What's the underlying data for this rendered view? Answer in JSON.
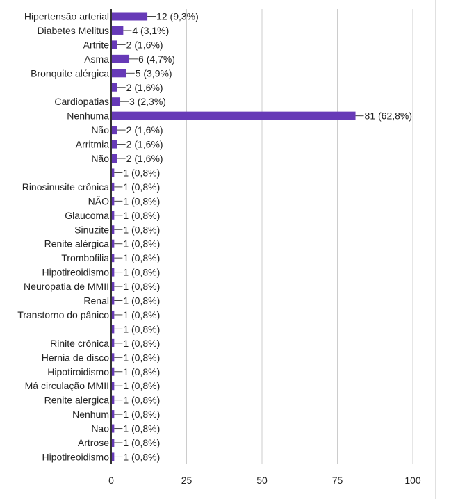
{
  "chart_data": {
    "type": "bar",
    "orientation": "horizontal",
    "categories": [
      "Hipertensão arterial",
      "Diabetes Melitus",
      "Artrite",
      "Asma",
      "Bronquite alérgica",
      "",
      "Cardiopatias",
      "Nenhuma",
      "Não",
      "Arritmia",
      "Não",
      "",
      "Rinosinusite crônica",
      "NÃO",
      "Glaucoma",
      "Sinuzite",
      "Renite alérgica",
      "Trombofilia",
      "Hipotireoidismo",
      "Neuropatia de MMII",
      "Renal",
      "Transtorno do pânico",
      "",
      "Rinite crônica",
      "Hernia de disco",
      "Hipotiroidismo",
      "Má circulação MMII",
      "Renite alergica",
      "Nenhum",
      "Nao",
      "Artrose",
      "Hipotireoidismo"
    ],
    "values": [
      12,
      4,
      2,
      6,
      5,
      2,
      3,
      81,
      2,
      2,
      2,
      1,
      1,
      1,
      1,
      1,
      1,
      1,
      1,
      1,
      1,
      1,
      1,
      1,
      1,
      1,
      1,
      1,
      1,
      1,
      1,
      1
    ],
    "data_labels": [
      "12 (9,3%)",
      "4 (3,1%)",
      "2 (1,6%)",
      "6 (4,7%)",
      "5 (3,9%)",
      "2 (1,6%)",
      "3 (2,3%)",
      "81 (62,8%)",
      "2 (1,6%)",
      "2 (1,6%)",
      "2 (1,6%)",
      "1 (0,8%)",
      "1 (0,8%)",
      "1 (0,8%)",
      "1 (0,8%)",
      "1 (0,8%)",
      "1 (0,8%)",
      "1 (0,8%)",
      "1 (0,8%)",
      "1 (0,8%)",
      "1 (0,8%)",
      "1 (0,8%)",
      "1 (0,8%)",
      "1 (0,8%)",
      "1 (0,8%)",
      "1 (0,8%)",
      "1 (0,8%)",
      "1 (0,8%)",
      "1 (0,8%)",
      "1 (0,8%)",
      "1 (0,8%)",
      "1 (0,8%)"
    ],
    "xlim": [
      0,
      100
    ],
    "xticks": [
      "0",
      "25",
      "50",
      "75",
      "100"
    ],
    "title": "",
    "xlabel": "",
    "ylabel": "",
    "grid": "vertical",
    "bar_color": "#673AB7",
    "gridline_color": "#cccccc",
    "axis_color": "#333333"
  }
}
